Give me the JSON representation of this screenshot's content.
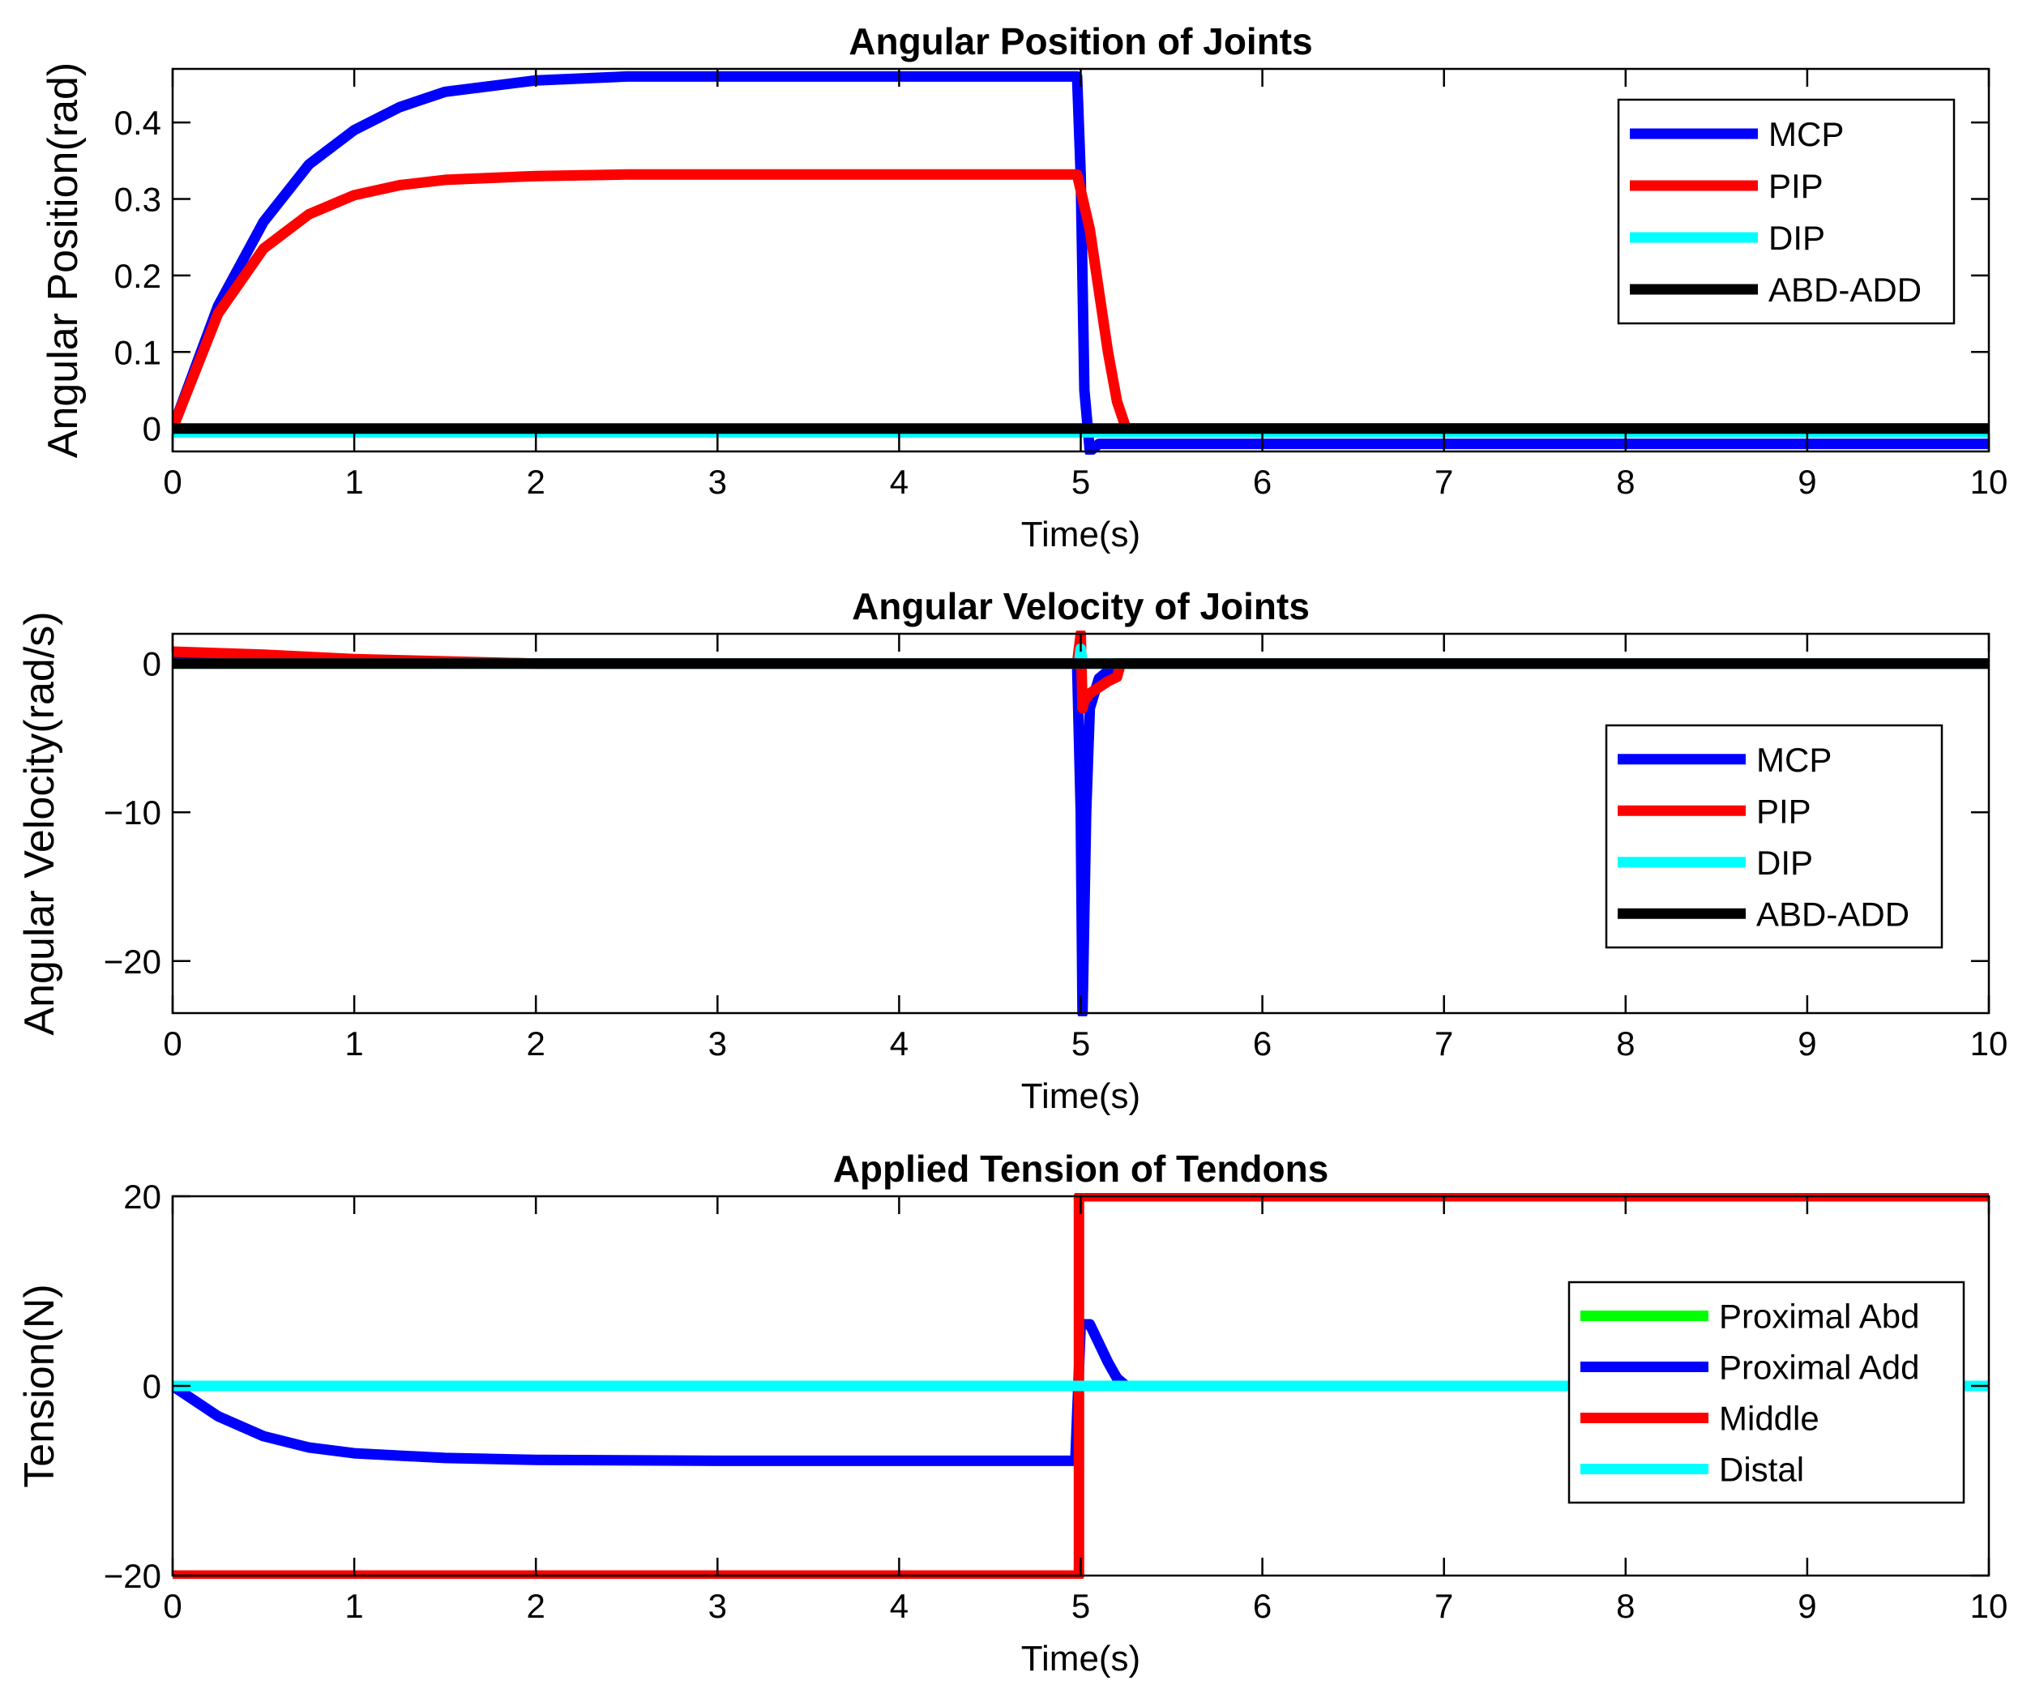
{
  "chart_data": [
    {
      "type": "line",
      "title": "Angular Position of Joints",
      "xlabel": "Time(s)",
      "ylabel": "Angular Position(rad)",
      "xlim": [
        0,
        10
      ],
      "ylim": [
        -0.03,
        0.47
      ],
      "xticks": [
        0,
        1,
        2,
        3,
        4,
        5,
        6,
        7,
        8,
        9,
        10
      ],
      "xtick_labels": [
        "0",
        "1",
        "2",
        "3",
        "4",
        "5",
        "6",
        "7",
        "8",
        "9",
        "10"
      ],
      "yticks": [
        0,
        0.1,
        0.2,
        0.3,
        0.4
      ],
      "ytick_labels": [
        "0",
        "0.1",
        "0.2",
        "0.3",
        "0.4"
      ],
      "grid": false,
      "legend_position": "top-right",
      "series": [
        {
          "name": "MCP",
          "color": "#0000ff",
          "x": [
            0,
            0.25,
            0.5,
            0.75,
            1,
            1.25,
            1.5,
            2,
            2.5,
            3,
            4,
            4.98,
            5.0,
            5.02,
            5.05,
            5.1,
            5.2,
            6,
            8,
            10
          ],
          "y": [
            0,
            0.16,
            0.27,
            0.345,
            0.39,
            0.42,
            0.44,
            0.455,
            0.46,
            0.46,
            0.46,
            0.46,
            0.33,
            0.05,
            -0.03,
            -0.02,
            -0.02,
            -0.02,
            -0.02,
            -0.02
          ]
        },
        {
          "name": "PIP",
          "color": "#ff0000",
          "x": [
            0,
            0.25,
            0.5,
            0.75,
            1,
            1.25,
            1.5,
            2,
            2.5,
            3,
            4,
            4.98,
            5.05,
            5.1,
            5.15,
            5.2,
            5.25,
            6,
            8,
            10
          ],
          "y": [
            0,
            0.15,
            0.235,
            0.28,
            0.305,
            0.318,
            0.325,
            0.33,
            0.332,
            0.332,
            0.332,
            0.332,
            0.26,
            0.18,
            0.1,
            0.035,
            0,
            0,
            0,
            0
          ]
        },
        {
          "name": "DIP",
          "color": "#00ffff",
          "x": [
            0,
            10
          ],
          "y": [
            -0.005,
            -0.005
          ]
        },
        {
          "name": "ABD-ADD",
          "color": "#000000",
          "x": [
            0,
            10
          ],
          "y": [
            0,
            0
          ]
        }
      ]
    },
    {
      "type": "line",
      "title": "Angular Velocity of Joints",
      "xlabel": "Time(s)",
      "ylabel": "Angular Velocity(rad/s)",
      "xlim": [
        0,
        10
      ],
      "ylim": [
        -23.5,
        2
      ],
      "xticks": [
        0,
        1,
        2,
        3,
        4,
        5,
        6,
        7,
        8,
        9,
        10
      ],
      "xtick_labels": [
        "0",
        "1",
        "2",
        "3",
        "4",
        "5",
        "6",
        "7",
        "8",
        "9",
        "10"
      ],
      "yticks": [
        -20,
        -10,
        0
      ],
      "ytick_labels": [
        "−20",
        "−10",
        "0"
      ],
      "grid": false,
      "legend_position": "right",
      "series": [
        {
          "name": "MCP",
          "color": "#0000ff",
          "x": [
            0,
            0.5,
            1,
            2,
            4.98,
            5.0,
            5.01,
            5.03,
            5.05,
            5.1,
            5.2,
            6,
            10
          ],
          "y": [
            0.5,
            0.3,
            0.15,
            0,
            0,
            -10,
            -23.5,
            -10,
            -3,
            -1,
            0,
            0,
            0
          ]
        },
        {
          "name": "PIP",
          "color": "#ff0000",
          "x": [
            0,
            0.5,
            1,
            2,
            4.98,
            5.0,
            5.01,
            5.02,
            5.05,
            5.1,
            5.15,
            5.2,
            5.22,
            6,
            10
          ],
          "y": [
            0.8,
            0.6,
            0.3,
            0,
            0,
            2,
            -3,
            -2.5,
            -2,
            -1.6,
            -1.2,
            -0.9,
            0,
            0,
            0
          ]
        },
        {
          "name": "DIP",
          "color": "#00ffff",
          "x": [
            0,
            4.99,
            5.0,
            5.01,
            10
          ],
          "y": [
            0,
            0,
            1,
            0,
            0
          ]
        },
        {
          "name": "ABD-ADD",
          "color": "#000000",
          "x": [
            0,
            10
          ],
          "y": [
            0,
            0
          ]
        }
      ]
    },
    {
      "type": "line",
      "title": "Applied Tension of Tendons",
      "xlabel": "Time(s)",
      "ylabel": "Tension(N)",
      "xlim": [
        0,
        10
      ],
      "ylim": [
        -20,
        20
      ],
      "xticks": [
        0,
        1,
        2,
        3,
        4,
        5,
        6,
        7,
        8,
        9,
        10
      ],
      "xtick_labels": [
        "0",
        "1",
        "2",
        "3",
        "4",
        "5",
        "6",
        "7",
        "8",
        "9",
        "10"
      ],
      "yticks": [
        -20,
        0,
        20
      ],
      "ytick_labels": [
        "−20",
        "0",
        "20"
      ],
      "grid": false,
      "legend_position": "right",
      "series": [
        {
          "name": "Proximal Abd",
          "color": "#00ff00",
          "x": [
            0,
            10
          ],
          "y": [
            0,
            0
          ]
        },
        {
          "name": "Proximal Add",
          "color": "#0000ff",
          "x": [
            0,
            0.25,
            0.5,
            0.75,
            1,
            1.5,
            2,
            3,
            4,
            4.97,
            5.0,
            5.05,
            5.1,
            5.15,
            5.2,
            5.25,
            6,
            10
          ],
          "y": [
            0,
            -3.2,
            -5.3,
            -6.5,
            -7.1,
            -7.6,
            -7.8,
            -7.9,
            -7.9,
            -7.9,
            6.5,
            6.5,
            4.5,
            2.5,
            0.8,
            0,
            0,
            0
          ]
        },
        {
          "name": "Middle",
          "color": "#ff0000",
          "x": [
            0,
            4.99,
            4.99,
            5.0,
            10
          ],
          "y": [
            -20,
            -20,
            20,
            20,
            20
          ]
        },
        {
          "name": "Distal",
          "color": "#00ffff",
          "x": [
            0,
            10
          ],
          "y": [
            0,
            0
          ]
        }
      ]
    }
  ]
}
